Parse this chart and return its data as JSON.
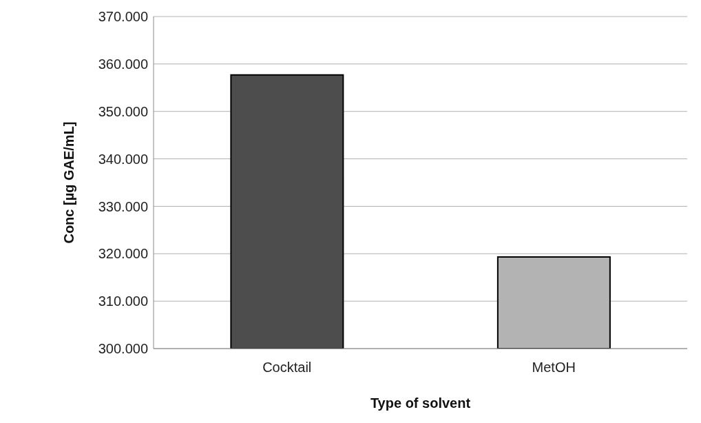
{
  "chart_data": {
    "type": "bar",
    "xlabel": "Type of solvent",
    "ylabel": "Conc [µg GAE/mL]",
    "categories": [
      "Cocktail",
      "MetOH"
    ],
    "values": [
      357.7,
      319.3
    ],
    "colors": [
      "#4d4d4d",
      "#b3b3b3"
    ],
    "ylim": [
      300,
      370
    ],
    "yticks": [
      {
        "value": 300,
        "label": "300.000"
      },
      {
        "value": 310,
        "label": "310.000"
      },
      {
        "value": 320,
        "label": "320.000"
      },
      {
        "value": 330,
        "label": "330.000"
      },
      {
        "value": 340,
        "label": "340.000"
      },
      {
        "value": 350,
        "label": "350.000"
      },
      {
        "value": 360,
        "label": "360.000"
      },
      {
        "value": 370,
        "label": "370.000"
      }
    ],
    "grid": "y"
  }
}
